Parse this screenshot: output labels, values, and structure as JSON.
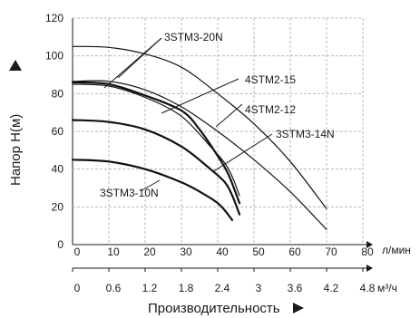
{
  "chart_data": {
    "type": "line",
    "ylabel": "Напор H(м)",
    "xlabel": "Производительность",
    "x_unit_top": "л/мин",
    "x_unit_bottom": "м³/ч",
    "y_ticks": [
      "0",
      "20",
      "40",
      "60",
      "80",
      "100",
      "120"
    ],
    "x_ticks_top": [
      "0",
      "10",
      "20",
      "30",
      "40",
      "50",
      "60",
      "70",
      "80"
    ],
    "x_ticks_bottom": [
      "0",
      "0.6",
      "1.2",
      "1.8",
      "2.4",
      "3",
      "3.6",
      "4.2",
      "4.8"
    ],
    "xlim": [
      0,
      80
    ],
    "ylim": [
      0,
      120
    ],
    "grid": true,
    "series": [
      {
        "name": "3STM3-20N",
        "points": [
          [
            0,
            105
          ],
          [
            10,
            104.5
          ],
          [
            20,
            101
          ],
          [
            30,
            94
          ],
          [
            40,
            80
          ],
          [
            50,
            64
          ],
          [
            60,
            44
          ],
          [
            70,
            19
          ]
        ]
      },
      {
        "name": "4STM2-15",
        "points": [
          [
            0,
            86.5
          ],
          [
            10,
            86.5
          ],
          [
            20,
            82
          ],
          [
            30,
            73
          ],
          [
            40,
            60
          ],
          [
            50,
            45
          ],
          [
            60,
            28
          ],
          [
            70,
            8
          ]
        ]
      },
      {
        "name": "4STM2-12",
        "points": [
          [
            0,
            86
          ],
          [
            10,
            85
          ],
          [
            20,
            79
          ],
          [
            30,
            71
          ],
          [
            35,
            61
          ],
          [
            40,
            47
          ],
          [
            43,
            37
          ],
          [
            46,
            22
          ]
        ]
      },
      {
        "name": "3STM3-14N",
        "points": [
          [
            0,
            85
          ],
          [
            10,
            84
          ],
          [
            20,
            78
          ],
          [
            30,
            68
          ],
          [
            38,
            52
          ],
          [
            42,
            43
          ],
          [
            44,
            36
          ],
          [
            46,
            26
          ]
        ]
      },
      {
        "name": "3STM3-10N",
        "points": [
          [
            0,
            66
          ],
          [
            10,
            65
          ],
          [
            20,
            61
          ],
          [
            30,
            52
          ],
          [
            38,
            40
          ],
          [
            42,
            33
          ],
          [
            44,
            26
          ],
          [
            46,
            16
          ]
        ]
      },
      {
        "name": "",
        "points": [
          [
            0,
            45
          ],
          [
            10,
            44
          ],
          [
            20,
            40
          ],
          [
            30,
            33
          ],
          [
            36,
            27
          ],
          [
            40,
            22
          ],
          [
            42,
            18
          ],
          [
            44,
            13
          ]
        ]
      }
    ],
    "label_text": [
      "3STM3-20N",
      "4STM2-15",
      "4STM2-12",
      "3STM3-14N",
      "3STM3-10N"
    ]
  }
}
